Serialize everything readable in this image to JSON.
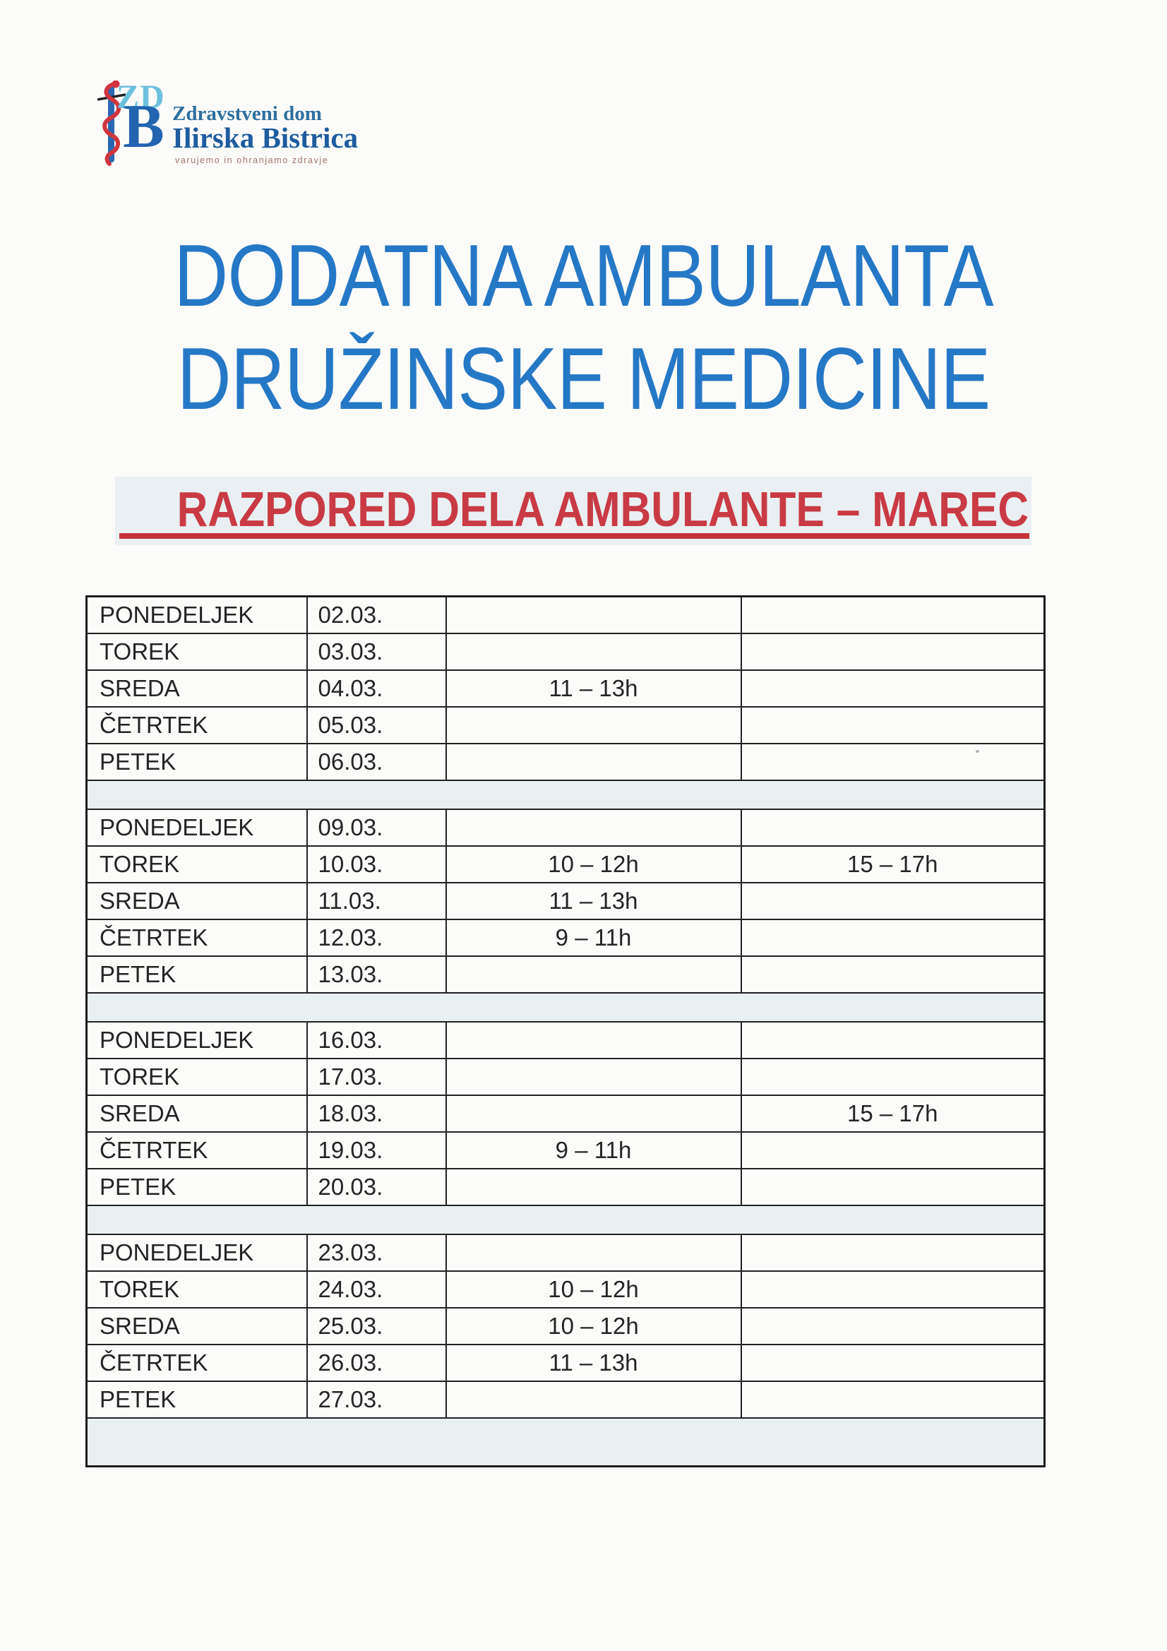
{
  "logo": {
    "monogram_top": "ZD",
    "monogram_bottom": "B",
    "org_name_line1": "Zdravstveni dom",
    "org_name_line2": "Ilirska Bistrica",
    "tagline": "varujemo in ohranjamo zdravje"
  },
  "title": {
    "line1": "DODATNA AMBULANTA",
    "line2": "DRUŽINSKE MEDICINE",
    "color": "#2578c6"
  },
  "subtitle": {
    "text": "RAZPORED DELA AMBULANTE – MAREC",
    "color": "#c93b44",
    "underline_color": "#c5323c",
    "band_background": "#e9eff2"
  },
  "schedule": {
    "separator_background": "#e9f0f1",
    "weeks": [
      {
        "rows": [
          {
            "day": "PONEDELJEK",
            "date": "02.03.",
            "slot1": "",
            "slot2": ""
          },
          {
            "day": "TOREK",
            "date": "03.03.",
            "slot1": "",
            "slot2": ""
          },
          {
            "day": "SREDA",
            "date": "04.03.",
            "slot1": "11 – 13h",
            "slot2": ""
          },
          {
            "day": "ČETRTEK",
            "date": "05.03.",
            "slot1": "",
            "slot2": ""
          },
          {
            "day": "PETEK",
            "date": "06.03.",
            "slot1": "",
            "slot2": ""
          }
        ]
      },
      {
        "rows": [
          {
            "day": "PONEDELJEK",
            "date": "09.03.",
            "slot1": "",
            "slot2": ""
          },
          {
            "day": "TOREK",
            "date": "10.03.",
            "slot1": "10 – 12h",
            "slot2": "15 – 17h"
          },
          {
            "day": "SREDA",
            "date": "11.03.",
            "slot1": "11 – 13h",
            "slot2": ""
          },
          {
            "day": "ČETRTEK",
            "date": "12.03.",
            "slot1": "9 – 11h",
            "slot2": ""
          },
          {
            "day": "PETEK",
            "date": "13.03.",
            "slot1": "",
            "slot2": ""
          }
        ]
      },
      {
        "rows": [
          {
            "day": "PONEDELJEK",
            "date": "16.03.",
            "slot1": "",
            "slot2": ""
          },
          {
            "day": "TOREK",
            "date": "17.03.",
            "slot1": "",
            "slot2": ""
          },
          {
            "day": "SREDA",
            "date": "18.03.",
            "slot1": "",
            "slot2": "15 – 17h"
          },
          {
            "day": "ČETRTEK",
            "date": "19.03.",
            "slot1": "9 – 11h",
            "slot2": ""
          },
          {
            "day": "PETEK",
            "date": "20.03.",
            "slot1": "",
            "slot2": ""
          }
        ]
      },
      {
        "rows": [
          {
            "day": "PONEDELJEK",
            "date": "23.03.",
            "slot1": "",
            "slot2": ""
          },
          {
            "day": "TOREK",
            "date": "24.03.",
            "slot1": "10 – 12h",
            "slot2": ""
          },
          {
            "day": "SREDA",
            "date": "25.03.",
            "slot1": "10 – 12h",
            "slot2": ""
          },
          {
            "day": "ČETRTEK",
            "date": "26.03.",
            "slot1": "11 – 13h",
            "slot2": ""
          },
          {
            "day": "PETEK",
            "date": "27.03.",
            "slot1": "",
            "slot2": ""
          }
        ]
      }
    ]
  }
}
